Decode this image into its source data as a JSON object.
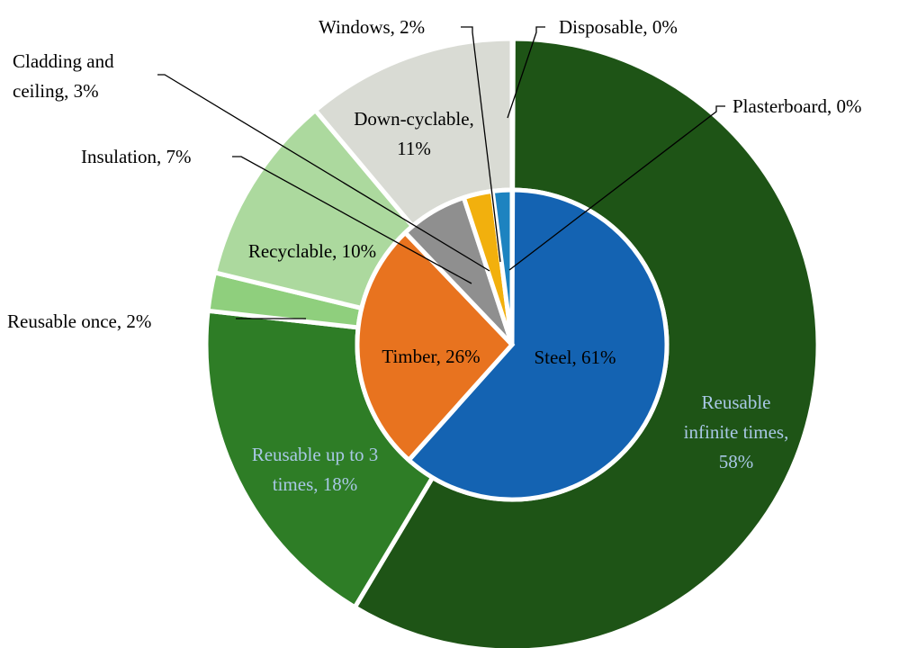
{
  "chart_data": {
    "type": "pie",
    "subtype": "nested-donut",
    "title": "",
    "rings": [
      {
        "name": "",
        "ring": "outer",
        "labels": [
          "Reusable infinite times",
          "Reusable up to 3 times",
          "Reusable once",
          "Recyclable",
          "Down-cyclable",
          "Disposable"
        ],
        "values": [
          58,
          18,
          2,
          10,
          11,
          0
        ],
        "colors": [
          "#1e5416",
          "#2e7d26",
          "#8fcf7d",
          "#acd99e",
          "#d9dbd4",
          "#d9dbd4"
        ],
        "display_labels": [
          [
            "Reusable",
            "infinite times,",
            "58%"
          ],
          [
            "Reusable up to 3",
            "times, 18%"
          ],
          [
            "Reusable once, 2%"
          ],
          [
            "Recyclable, 10%"
          ],
          [
            "Down-cyclable,",
            "11%"
          ],
          [
            "Disposable, 0%"
          ]
        ]
      },
      {
        "name": "",
        "ring": "inner",
        "labels": [
          "Steel",
          "Timber",
          "Insulation",
          "Cladding and ceiling",
          "Windows",
          "Plasterboard"
        ],
        "values": [
          61,
          26,
          7,
          3,
          2,
          0
        ],
        "colors": [
          "#1463b2",
          "#e8731f",
          "#8f8f8f",
          "#f2b00d",
          "#1d83c0",
          "#6ea3c9"
        ],
        "display_labels": [
          [
            "Steel, 61%"
          ],
          [
            "Timber, 26%"
          ],
          [
            "Insulation, 7%"
          ],
          [
            "Cladding and",
            "ceiling, 3%"
          ],
          [
            "Windows, 2%"
          ],
          [
            "Plasterboard, 0%"
          ]
        ]
      }
    ],
    "label_colors": {
      "dark": "#000000",
      "light": "#a9c8e6"
    },
    "legend": "none"
  }
}
